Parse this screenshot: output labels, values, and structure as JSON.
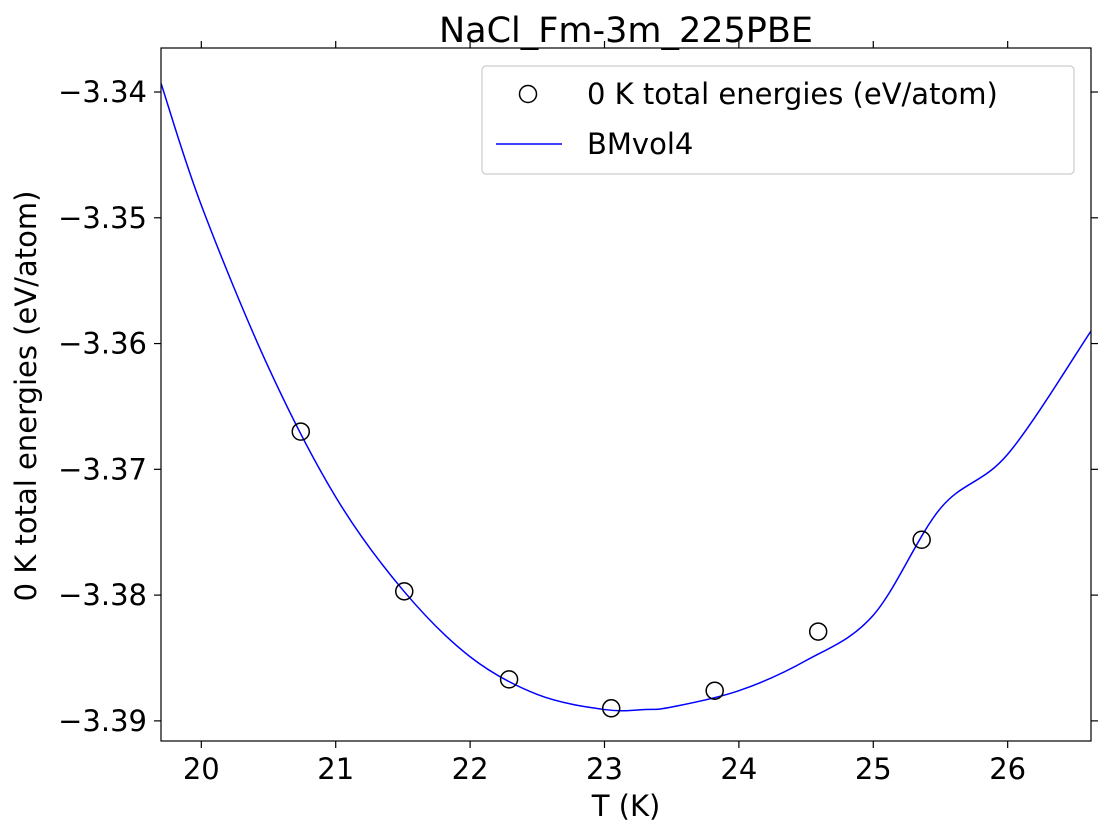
{
  "chart_data": {
    "type": "scatter",
    "title": "NaCl_Fm-3m_225PBE",
    "xlabel": "T (K)",
    "ylabel": "0 K total energies (eV/atom)",
    "xlim": [
      19.7,
      26.62
    ],
    "ylim": [
      -3.3916,
      -3.3365
    ],
    "x_ticks": [
      20,
      21,
      22,
      23,
      24,
      25,
      26
    ],
    "x_tick_labels": [
      "20",
      "21",
      "22",
      "23",
      "24",
      "25",
      "26"
    ],
    "y_ticks": [
      -3.34,
      -3.35,
      -3.36,
      -3.37,
      -3.38,
      -3.39
    ],
    "y_tick_labels": [
      "−3.34",
      "−3.35",
      "−3.36",
      "−3.37",
      "−3.38",
      "−3.39"
    ],
    "grid": false,
    "legend_position": "top-right",
    "series": [
      {
        "name": "0 K total energies (eV/atom)",
        "kind": "scatter",
        "marker": "open-circle",
        "color": "#000000",
        "x": [
          20.74,
          21.51,
          22.29,
          23.05,
          23.82,
          24.59,
          25.36
        ],
        "y": [
          -3.367,
          -3.3797,
          -3.3867,
          -3.389,
          -3.3876,
          -3.3829,
          -3.3756
        ]
      },
      {
        "name": "BMvol4",
        "kind": "line",
        "color": "#0000ff",
        "x": [
          19.7,
          20.0,
          20.5,
          21.0,
          21.5,
          22.0,
          22.5,
          23.0,
          23.3,
          23.5,
          24.0,
          24.5,
          25.0,
          25.5,
          26.0,
          26.62
        ],
        "y": [
          -3.3393,
          -3.349,
          -3.3619,
          -3.3722,
          -3.3796,
          -3.3849,
          -3.3879,
          -3.3891,
          -3.3891,
          -3.3889,
          -3.3876,
          -3.3852,
          -3.3816,
          -3.3731,
          -3.3688,
          -3.359
        ]
      }
    ]
  }
}
